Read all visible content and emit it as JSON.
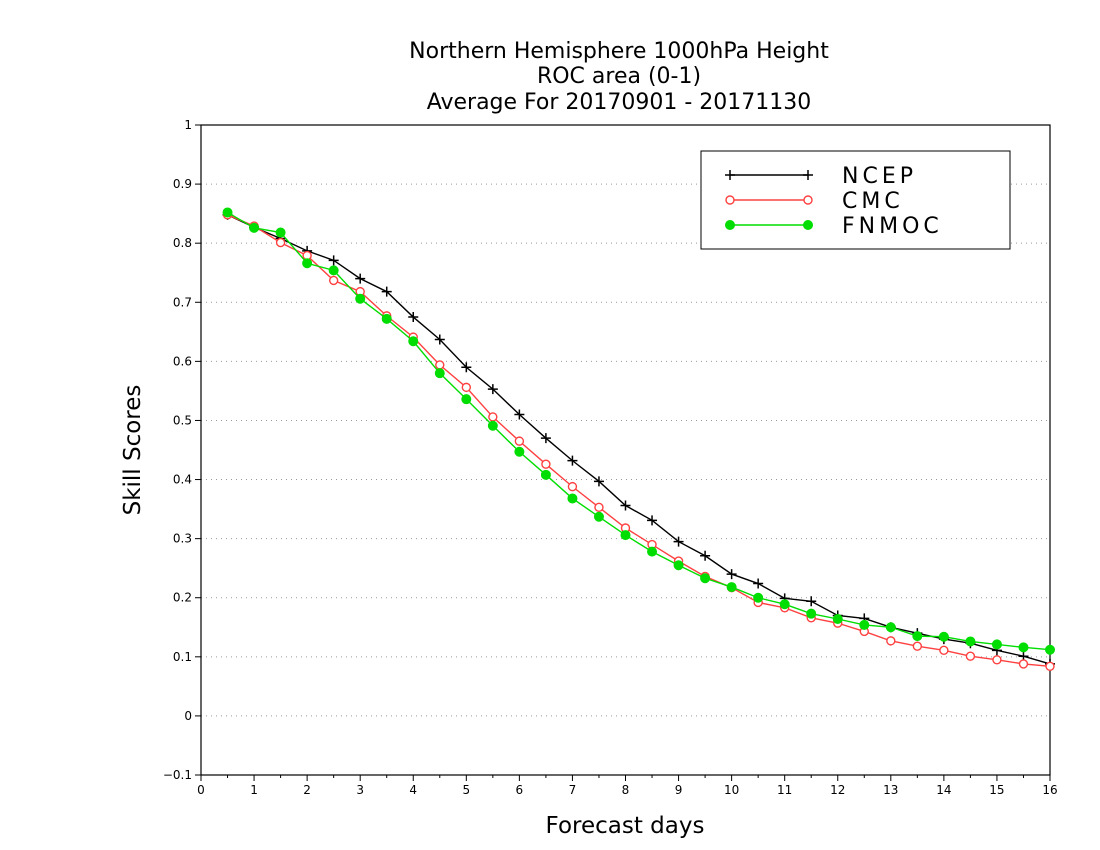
{
  "chart_data": {
    "type": "line",
    "title": [
      "Northern Hemisphere 1000hPa Height",
      "ROC area (0-1)",
      "Average For 20170901 - 20171130"
    ],
    "xlabel": "Forecast days",
    "ylabel": "Skill Scores",
    "xlim": [
      0,
      16
    ],
    "ylim": [
      -0.1,
      1
    ],
    "xticks": [
      "0",
      "1",
      "2",
      "3",
      "4",
      "5",
      "6",
      "7",
      "8",
      "9",
      "10",
      "11",
      "12",
      "13",
      "14",
      "15",
      "16"
    ],
    "yticks": [
      "−0.1",
      "0",
      "0.1",
      "0.2",
      "0.3",
      "0.4",
      "0.5",
      "0.6",
      "0.7",
      "0.8",
      "0.9",
      "1"
    ],
    "grid": true,
    "legend_position": "top-right",
    "x": [
      0.5,
      1,
      1.5,
      2,
      2.5,
      3,
      3.5,
      4,
      4.5,
      5,
      5.5,
      6,
      6.5,
      7,
      7.5,
      8,
      8.5,
      9,
      9.5,
      10,
      10.5,
      11,
      11.5,
      12,
      12.5,
      13,
      13.5,
      14,
      14.5,
      15,
      15.5,
      16
    ],
    "series": [
      {
        "name": "NCEP",
        "color": "#000000",
        "marker": "plus",
        "values": [
          0.848,
          0.827,
          0.808,
          0.787,
          0.771,
          0.74,
          0.718,
          0.675,
          0.637,
          0.59,
          0.553,
          0.51,
          0.47,
          0.432,
          0.397,
          0.356,
          0.331,
          0.295,
          0.271,
          0.24,
          0.224,
          0.199,
          0.194,
          0.17,
          0.165,
          0.15,
          0.14,
          0.13,
          0.123,
          0.111,
          0.101,
          0.088
        ]
      },
      {
        "name": "CMC",
        "color": "#ff4040",
        "marker": "open-circle",
        "values": [
          0.848,
          0.829,
          0.801,
          0.779,
          0.737,
          0.718,
          0.677,
          0.641,
          0.594,
          0.556,
          0.506,
          0.465,
          0.426,
          0.388,
          0.353,
          0.318,
          0.29,
          0.262,
          0.236,
          0.217,
          0.192,
          0.183,
          0.166,
          0.157,
          0.143,
          0.127,
          0.118,
          0.111,
          0.101,
          0.095,
          0.088,
          0.084
        ]
      },
      {
        "name": "FNMOC",
        "color": "#00dd00",
        "marker": "filled-circle",
        "values": [
          0.852,
          0.826,
          0.818,
          0.766,
          0.754,
          0.706,
          0.672,
          0.634,
          0.58,
          0.536,
          0.491,
          0.447,
          0.408,
          0.368,
          0.337,
          0.306,
          0.278,
          0.255,
          0.233,
          0.218,
          0.2,
          0.189,
          0.173,
          0.164,
          0.154,
          0.15,
          0.135,
          0.134,
          0.126,
          0.121,
          0.116,
          0.112
        ]
      }
    ]
  }
}
